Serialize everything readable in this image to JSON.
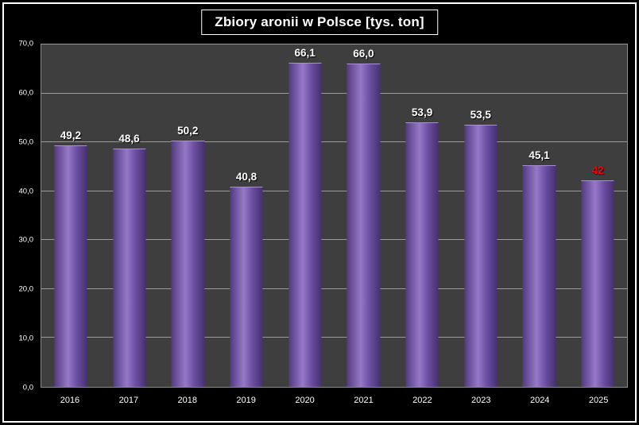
{
  "chart_data": {
    "type": "bar",
    "title": "Zbiory aronii w Polsce [tys. ton]",
    "categories": [
      "2016",
      "2017",
      "2018",
      "2019",
      "2020",
      "2021",
      "2022",
      "2023",
      "2024",
      "2025"
    ],
    "values": [
      49.2,
      48.6,
      50.2,
      40.8,
      66.1,
      66.0,
      53.9,
      53.5,
      45.1,
      42
    ],
    "value_labels": [
      "49,2",
      "48,6",
      "50,2",
      "40,8",
      "66,1",
      "66,0",
      "53,9",
      "53,5",
      "45,1",
      "42"
    ],
    "label_colors": [
      "#ffffff",
      "#ffffff",
      "#ffffff",
      "#ffffff",
      "#ffffff",
      "#ffffff",
      "#ffffff",
      "#ffffff",
      "#ffffff",
      "#ff0000"
    ],
    "ylim": [
      0,
      70
    ],
    "ytick_step": 10,
    "ytick_labels": [
      "0,0",
      "10,0",
      "20,0",
      "30,0",
      "40,0",
      "50,0",
      "60,0",
      "70,0"
    ],
    "legend": "none",
    "grid": "horizontal",
    "colors": {
      "background": "#000000",
      "plot_background": "#3e3e3e",
      "bar": "#7a5fae",
      "gridline": "#9a9a9a",
      "text": "#ffffff",
      "highlight_label": "#ff0000"
    }
  }
}
